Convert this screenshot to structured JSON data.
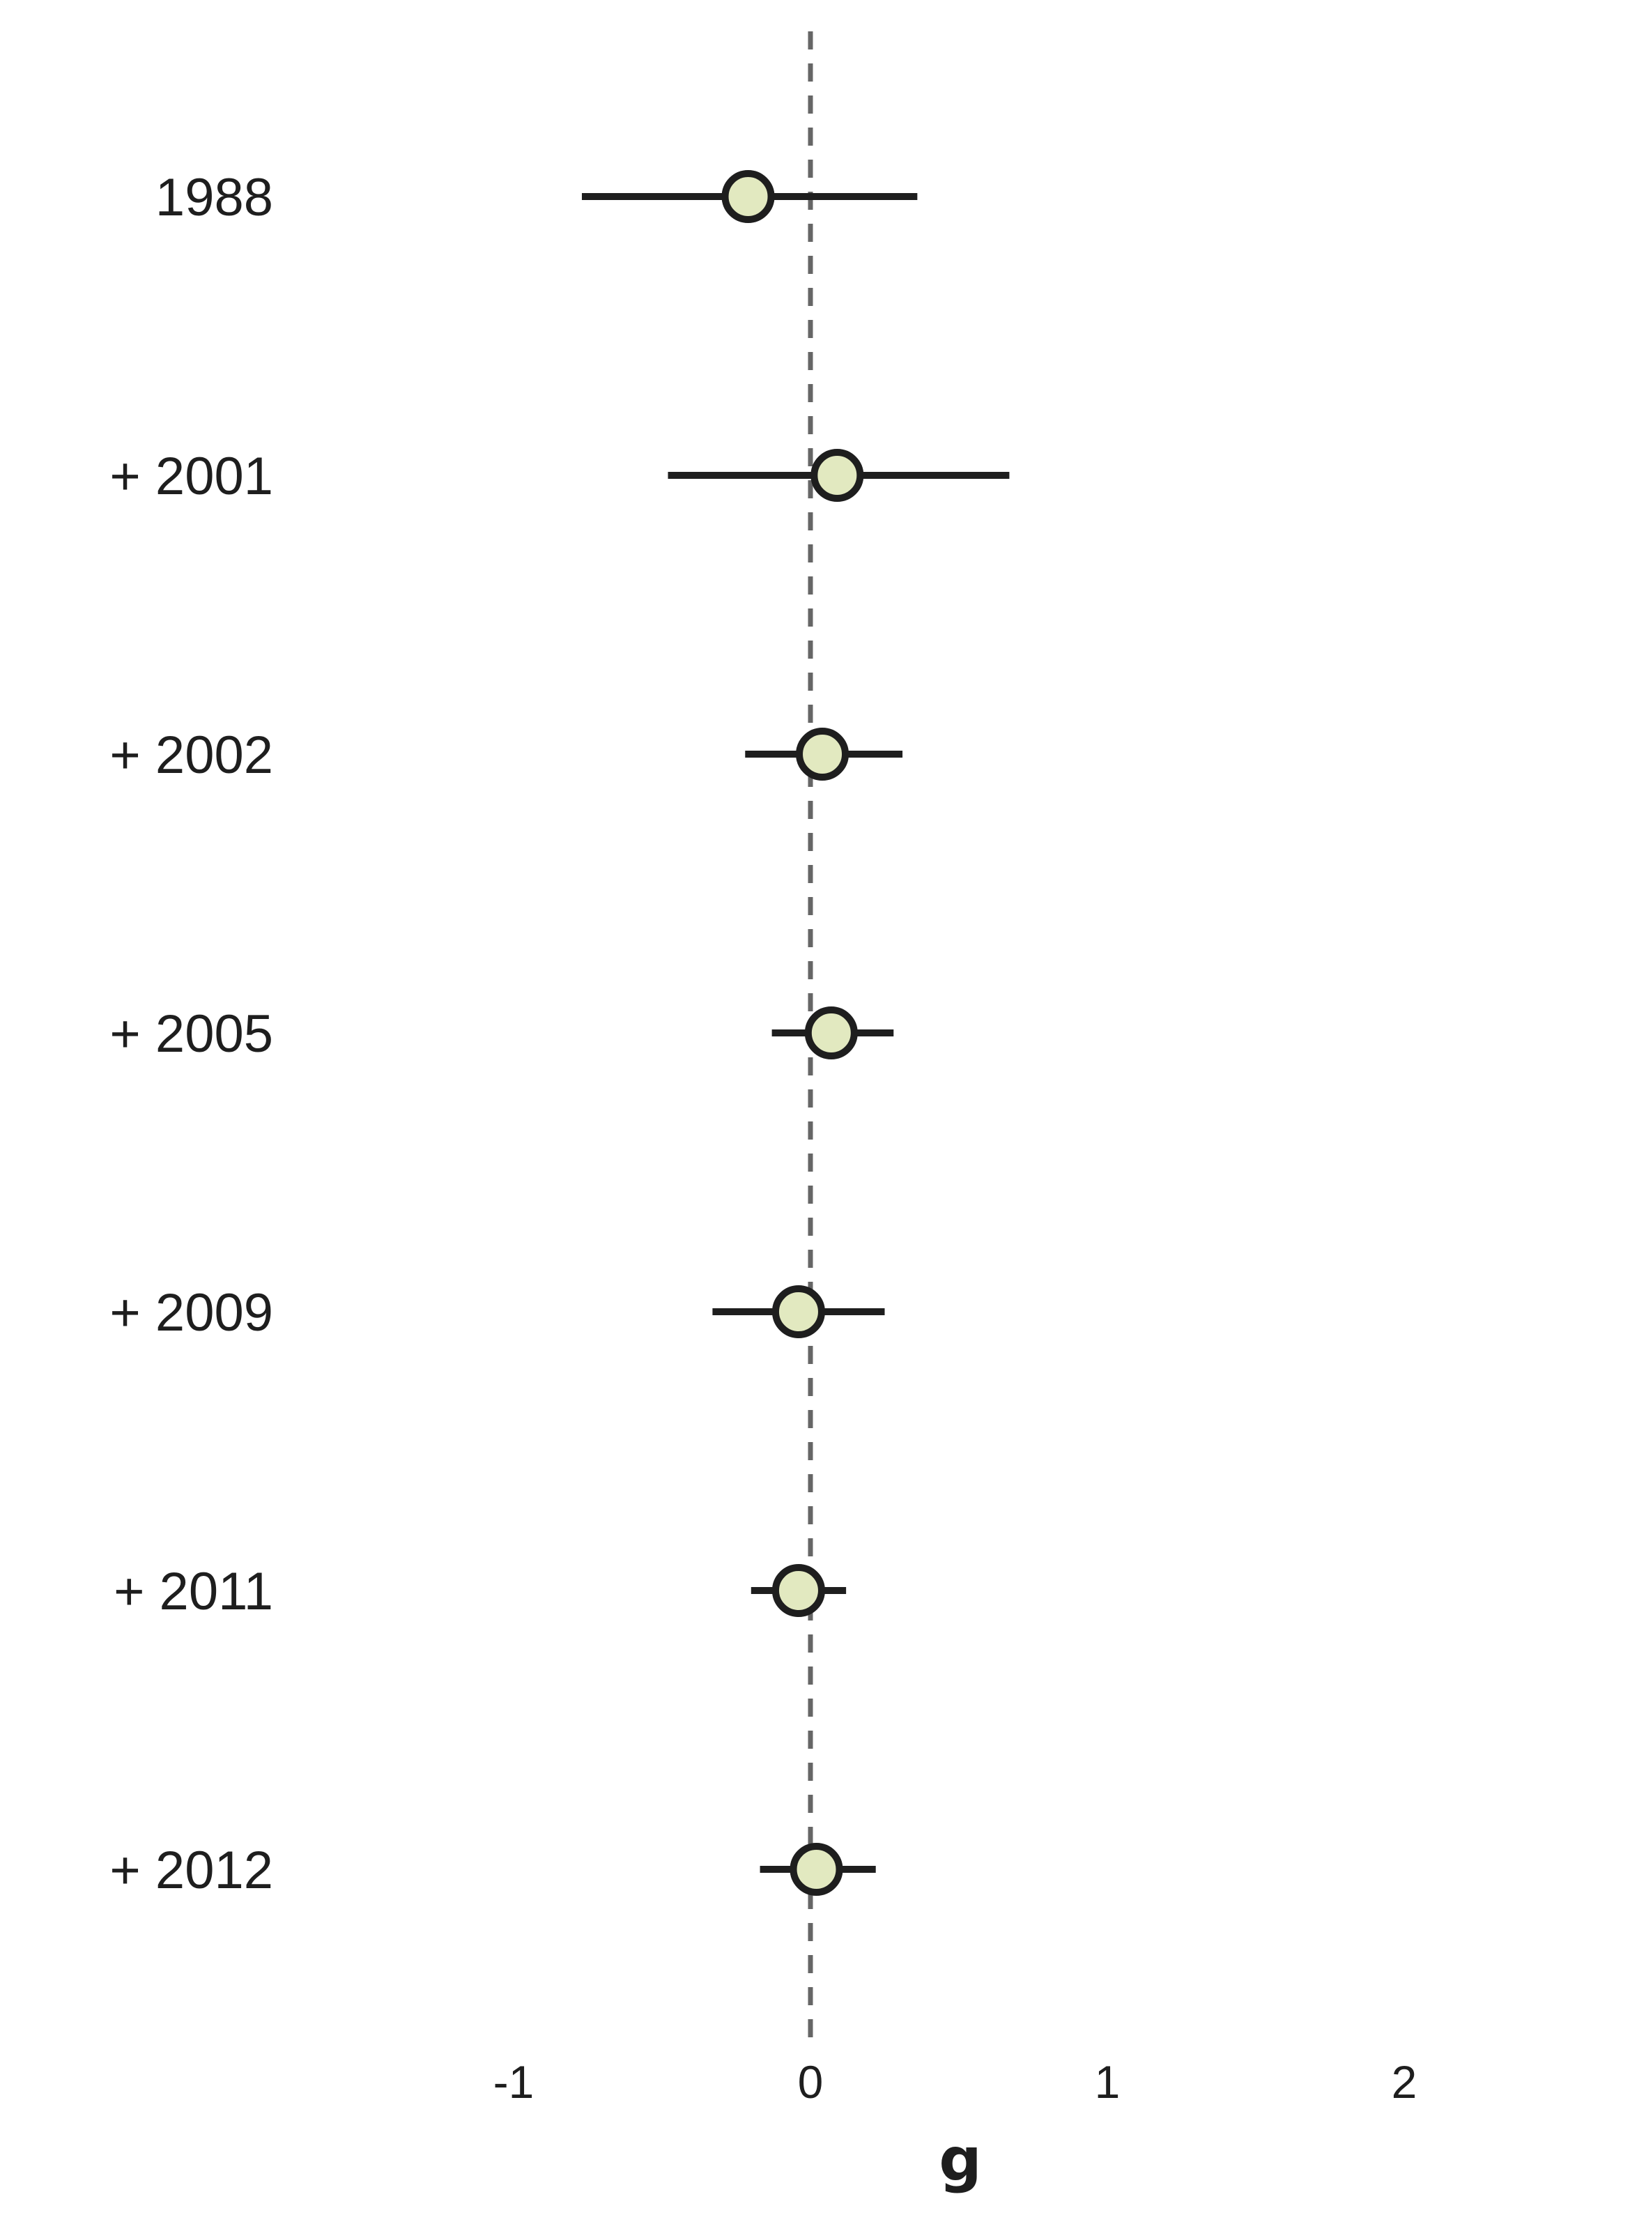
{
  "chart_data": {
    "type": "forest",
    "title": "",
    "xlabel": "g",
    "ylabel": "",
    "xlim": [
      -1.95,
      2.75
    ],
    "xticks": [
      -1,
      0,
      1,
      2
    ],
    "xtick_labels": [
      "-1",
      "0",
      "1",
      "2"
    ],
    "reference_line": 0,
    "grid": false,
    "legend": "none",
    "point_fill": "#e2e9c0",
    "line_color": "#1e1e1e",
    "reference_line_color": "#666666",
    "rows": [
      {
        "label": "1988",
        "estimate": -0.21,
        "ci_low": -0.77,
        "ci_high": 0.36
      },
      {
        "label": "+ 2001",
        "estimate": 0.09,
        "ci_low": -0.48,
        "ci_high": 0.67
      },
      {
        "label": "+ 2002",
        "estimate": 0.04,
        "ci_low": -0.22,
        "ci_high": 0.31
      },
      {
        "label": "+ 2005",
        "estimate": 0.07,
        "ci_low": -0.13,
        "ci_high": 0.28
      },
      {
        "label": "+ 2009",
        "estimate": -0.04,
        "ci_low": -0.33,
        "ci_high": 0.25
      },
      {
        "label": "+ 2011",
        "estimate": -0.04,
        "ci_low": -0.2,
        "ci_high": 0.12
      },
      {
        "label": "+ 2012",
        "estimate": 0.02,
        "ci_low": -0.17,
        "ci_high": 0.22
      }
    ]
  }
}
